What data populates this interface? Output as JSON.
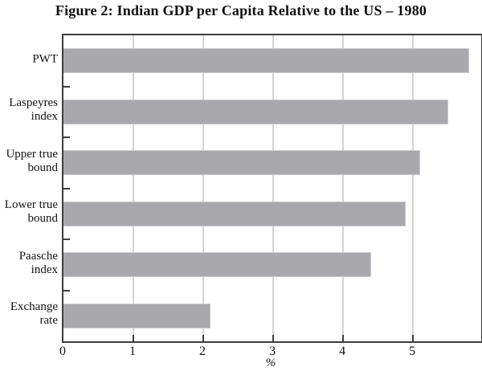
{
  "figure": {
    "title": "Figure 2: Indian GDP per Capita Relative to the US – 1980"
  },
  "chart_data": {
    "type": "bar",
    "orientation": "horizontal",
    "title": "Figure 2: Indian GDP per Capita Relative to the US – 1980",
    "categories": [
      "PWT",
      "Laspeyres\nindex",
      "Upper true\nbound",
      "Lower true\nbound",
      "Paasche\nindex",
      "Exchange\nrate"
    ],
    "values": [
      5.8,
      5.5,
      5.1,
      4.9,
      4.4,
      2.1
    ],
    "xlabel": "%",
    "ylabel": "",
    "xlim": [
      0,
      5.975
    ],
    "xticks": [
      "0",
      "1",
      "2",
      "3",
      "4",
      "5"
    ],
    "grid": "vertical",
    "legend": "none",
    "bar_color": "#a9a9ad",
    "grid_color": "#d4d4d4",
    "axis_color": "#3d3d3f"
  }
}
